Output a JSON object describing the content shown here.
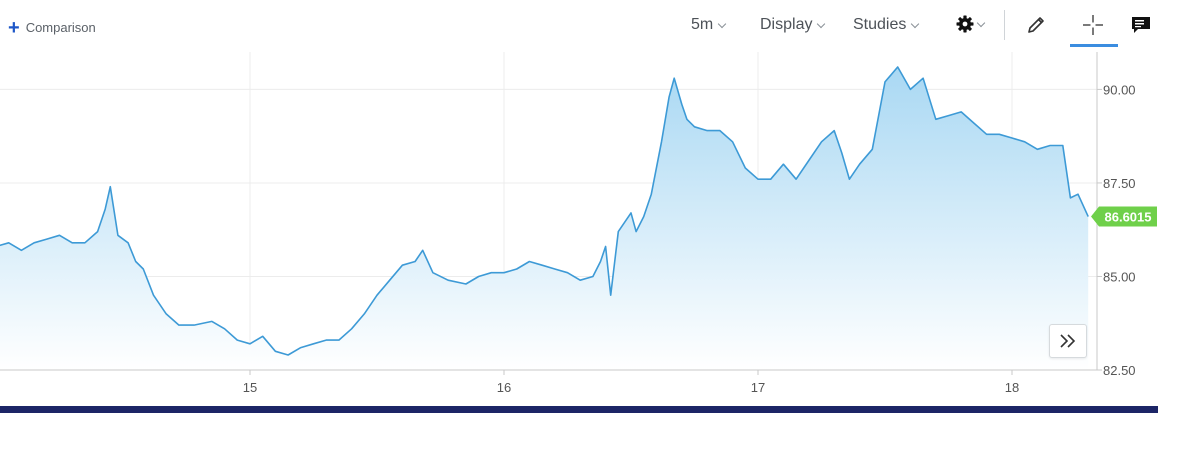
{
  "toolbar": {
    "comparison_label": "Comparison",
    "interval_label": "5m",
    "display_label": "Display",
    "studies_label": "Studies"
  },
  "colors": {
    "line": "#3d9ad6",
    "area_top": "#a9d8f3",
    "area_bottom": "#ffffff",
    "grid": "#ececec",
    "axis": "#c9c9c9",
    "price_badge": "#6fd04a",
    "bottom_bar": "#1c2566",
    "accent": "#3b8de0"
  },
  "icons": {
    "comparison": "plus-icon",
    "settings": "gear-icon",
    "draw": "pencil-icon",
    "crosshair": "crosshair-icon",
    "comments": "comment-icon",
    "scroll": "double-chevron-right-icon"
  },
  "chart_data": {
    "type": "area",
    "xlim": [
      14.0,
      18.3
    ],
    "ylim": [
      82.5,
      91.0
    ],
    "grid": true,
    "x_ticks": [
      15,
      16,
      17,
      18
    ],
    "x_tick_labels": [
      "15",
      "16",
      "17",
      "18"
    ],
    "y_ticks": [
      82.5,
      85.0,
      87.5,
      90.0
    ],
    "y_tick_labels": [
      "82.50",
      "85.00",
      "87.50",
      "90.00"
    ],
    "current_value": 86.6015,
    "current_value_label": "86.6015",
    "series": [
      {
        "x": [
          14.0,
          14.05,
          14.1,
          14.15,
          14.2,
          14.25,
          14.3,
          14.35,
          14.4,
          14.43,
          14.45,
          14.48,
          14.52,
          14.55,
          14.58,
          14.62,
          14.67,
          14.72,
          14.78,
          14.85,
          14.9,
          14.95,
          15.0,
          15.05,
          15.1,
          15.15,
          15.2,
          15.25,
          15.3,
          15.35,
          15.4,
          15.45,
          15.5,
          15.55,
          15.6,
          15.65,
          15.68,
          15.72,
          15.78,
          15.85,
          15.9,
          15.95,
          16.0,
          16.05,
          16.1,
          16.15,
          16.2,
          16.25,
          16.3,
          16.35,
          16.38,
          16.4,
          16.42,
          16.45,
          16.5,
          16.52,
          16.55,
          16.58,
          16.62,
          16.65,
          16.67,
          16.7,
          16.72,
          16.75,
          16.8,
          16.85,
          16.9,
          16.95,
          17.0,
          17.05,
          17.1,
          17.15,
          17.2,
          17.25,
          17.3,
          17.33,
          17.36,
          17.4,
          17.45,
          17.5,
          17.55,
          17.6,
          17.65,
          17.7,
          17.75,
          17.8,
          17.85,
          17.9,
          17.95,
          18.0,
          18.05,
          18.1,
          18.15,
          18.2,
          18.23,
          18.26,
          18.3
        ],
        "values": [
          85.8,
          85.9,
          85.7,
          85.9,
          86.0,
          86.1,
          85.9,
          85.9,
          86.2,
          86.8,
          87.4,
          86.1,
          85.9,
          85.4,
          85.2,
          84.5,
          84.0,
          83.7,
          83.7,
          83.8,
          83.6,
          83.3,
          83.2,
          83.4,
          83.0,
          82.9,
          83.1,
          83.2,
          83.3,
          83.3,
          83.6,
          84.0,
          84.5,
          84.9,
          85.3,
          85.4,
          85.7,
          85.1,
          84.9,
          84.8,
          85.0,
          85.1,
          85.1,
          85.2,
          85.4,
          85.3,
          85.2,
          85.1,
          84.9,
          85.0,
          85.4,
          85.8,
          84.5,
          86.2,
          86.7,
          86.2,
          86.6,
          87.2,
          88.6,
          89.8,
          90.3,
          89.6,
          89.2,
          89.0,
          88.9,
          88.9,
          88.6,
          87.9,
          87.6,
          87.6,
          88.0,
          87.6,
          88.1,
          88.6,
          88.9,
          88.3,
          87.6,
          88.0,
          88.4,
          90.2,
          90.6,
          90.0,
          90.3,
          89.2,
          89.3,
          89.4,
          89.1,
          88.8,
          88.8,
          88.7,
          88.6,
          88.4,
          88.5,
          88.5,
          87.1,
          87.2,
          86.6
        ]
      }
    ]
  }
}
